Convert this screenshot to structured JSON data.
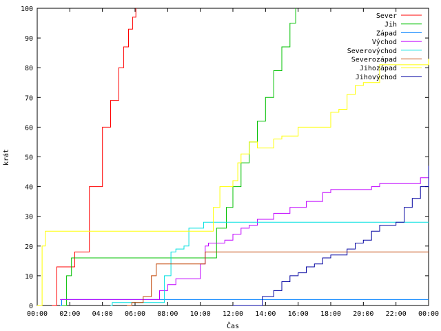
{
  "chart_data": {
    "type": "line",
    "xlabel": "Čas",
    "ylabel": "krát",
    "xlim": [
      0,
      24
    ],
    "ylim": [
      0,
      100
    ],
    "grid": false,
    "legend_position": "top-right",
    "x_ticks": [
      {
        "value": 0,
        "label": "00:00"
      },
      {
        "value": 2,
        "label": "02:00"
      },
      {
        "value": 4,
        "label": "04:00"
      },
      {
        "value": 6,
        "label": "06:00"
      },
      {
        "value": 8,
        "label": "08:00"
      },
      {
        "value": 10,
        "label": "10:00"
      },
      {
        "value": 12,
        "label": "12:00"
      },
      {
        "value": 14,
        "label": "14:00"
      },
      {
        "value": 16,
        "label": "16:00"
      },
      {
        "value": 18,
        "label": "18:00"
      },
      {
        "value": 20,
        "label": "20:00"
      },
      {
        "value": 22,
        "label": "22:00"
      },
      {
        "value": 24,
        "label": "00:00"
      }
    ],
    "y_ticks": [
      {
        "value": 0,
        "label": "0"
      },
      {
        "value": 10,
        "label": "10"
      },
      {
        "value": 20,
        "label": "20"
      },
      {
        "value": 30,
        "label": "30"
      },
      {
        "value": 40,
        "label": "40"
      },
      {
        "value": 50,
        "label": "50"
      },
      {
        "value": 60,
        "label": "60"
      },
      {
        "value": 70,
        "label": "70"
      },
      {
        "value": 80,
        "label": "80"
      },
      {
        "value": 90,
        "label": "90"
      },
      {
        "value": 100,
        "label": "100"
      }
    ],
    "series": [
      {
        "name": "Sever",
        "color": "#ff0000",
        "points": [
          [
            0.9,
            0
          ],
          [
            1.2,
            13
          ],
          [
            2.0,
            13
          ],
          [
            2.3,
            18
          ],
          [
            3.2,
            40
          ],
          [
            4.0,
            60
          ],
          [
            4.5,
            69
          ],
          [
            5.0,
            80
          ],
          [
            5.3,
            87
          ],
          [
            5.6,
            93
          ],
          [
            5.85,
            97
          ],
          [
            6.05,
            100
          ]
        ]
      },
      {
        "name": "Jih",
        "color": "#00c000",
        "points": [
          [
            1.5,
            0
          ],
          [
            1.8,
            10
          ],
          [
            2.1,
            16
          ],
          [
            10.7,
            16
          ],
          [
            11.0,
            26
          ],
          [
            11.6,
            33
          ],
          [
            12.0,
            40
          ],
          [
            12.5,
            48
          ],
          [
            13.0,
            55
          ],
          [
            13.5,
            62
          ],
          [
            14.0,
            70
          ],
          [
            14.5,
            79
          ],
          [
            15.0,
            87
          ],
          [
            15.5,
            95
          ],
          [
            15.85,
            100
          ]
        ]
      },
      {
        "name": "Západ",
        "color": "#0080ff",
        "points": [
          [
            1.4,
            0
          ],
          [
            1.5,
            2
          ],
          [
            24.0,
            2
          ]
        ]
      },
      {
        "name": "Východ",
        "color": "#c000ff",
        "points": [
          [
            1.4,
            2
          ],
          [
            7.0,
            2
          ],
          [
            7.5,
            5
          ],
          [
            8.0,
            7
          ],
          [
            8.5,
            9
          ],
          [
            9.5,
            9
          ],
          [
            10.0,
            14
          ],
          [
            10.3,
            20
          ],
          [
            10.5,
            21
          ],
          [
            11.5,
            22
          ],
          [
            12.0,
            24
          ],
          [
            12.5,
            26
          ],
          [
            13.0,
            27
          ],
          [
            13.5,
            29
          ],
          [
            14.5,
            31
          ],
          [
            15.5,
            33
          ],
          [
            16.5,
            35
          ],
          [
            17.5,
            38
          ],
          [
            18.0,
            39
          ],
          [
            20.5,
            40
          ],
          [
            21.0,
            41
          ],
          [
            23.0,
            41
          ],
          [
            23.5,
            43
          ],
          [
            24.0,
            45
          ]
        ]
      },
      {
        "name": "Severovýchod",
        "color": "#00e0e0",
        "points": [
          [
            4.5,
            0
          ],
          [
            4.6,
            1
          ],
          [
            7.5,
            1
          ],
          [
            7.8,
            10
          ],
          [
            8.2,
            18
          ],
          [
            8.5,
            19
          ],
          [
            9.0,
            20
          ],
          [
            9.3,
            26
          ],
          [
            10.2,
            28
          ],
          [
            24.0,
            28
          ]
        ]
      },
      {
        "name": "Severozápad",
        "color": "#c04000",
        "points": [
          [
            5.5,
            0
          ],
          [
            5.8,
            1
          ],
          [
            6.5,
            3
          ],
          [
            6.8,
            3
          ],
          [
            7.0,
            10
          ],
          [
            7.3,
            14
          ],
          [
            10.0,
            14
          ],
          [
            10.3,
            18
          ],
          [
            24.0,
            18
          ]
        ]
      },
      {
        "name": "Jihozápad",
        "color": "#ffff00",
        "points": [
          [
            0.0,
            0
          ],
          [
            0.3,
            20
          ],
          [
            0.5,
            25
          ],
          [
            10.5,
            25
          ],
          [
            10.8,
            33
          ],
          [
            11.2,
            40
          ],
          [
            12.0,
            42
          ],
          [
            12.3,
            48
          ],
          [
            12.5,
            51
          ],
          [
            13.0,
            55
          ],
          [
            13.5,
            53
          ],
          [
            14.5,
            56
          ],
          [
            15.0,
            57
          ],
          [
            16.0,
            60
          ],
          [
            16.5,
            60
          ],
          [
            17.8,
            60
          ],
          [
            18.0,
            65
          ],
          [
            18.5,
            66
          ],
          [
            19.0,
            71
          ],
          [
            19.5,
            74
          ],
          [
            20.0,
            75
          ],
          [
            21.0,
            81
          ],
          [
            24.0,
            83
          ]
        ]
      },
      {
        "name": "Jihovýchod",
        "color": "#0000a0",
        "points": [
          [
            12.0,
            0
          ],
          [
            13.0,
            0
          ],
          [
            13.8,
            3
          ],
          [
            14.5,
            5
          ],
          [
            15.0,
            8
          ],
          [
            15.5,
            10
          ],
          [
            16.0,
            11
          ],
          [
            16.5,
            13
          ],
          [
            17.0,
            14
          ],
          [
            17.5,
            16
          ],
          [
            18.0,
            17
          ],
          [
            19.0,
            19
          ],
          [
            19.5,
            21
          ],
          [
            20.0,
            22
          ],
          [
            20.5,
            25
          ],
          [
            21.0,
            27
          ],
          [
            22.0,
            28
          ],
          [
            22.5,
            33
          ],
          [
            23.0,
            36
          ],
          [
            23.5,
            40
          ],
          [
            24.0,
            47
          ]
        ]
      }
    ]
  }
}
